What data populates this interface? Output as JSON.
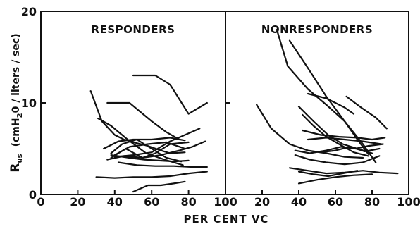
{
  "chart_data": {
    "type": "line",
    "xlabel": "PER CENT VC",
    "ylabel": {
      "main": "R",
      "sub": "us",
      "units": "(cmH",
      "units_sub": "2",
      "units_rest": "0 / liters / sec)"
    },
    "yticks": [
      "0",
      "10",
      "20"
    ],
    "ylim": [
      0,
      20
    ],
    "grid": false,
    "panels": [
      {
        "title": "RESPONDERS",
        "xlim": [
          0,
          100
        ],
        "xticks": [
          "0",
          "20",
          "40",
          "60",
          "80",
          "100"
        ],
        "series": [
          {
            "x": [
              50,
              62,
              70,
              80,
              90
            ],
            "y": [
              13.0,
              13.0,
              12.0,
              8.8,
              10.0
            ]
          },
          {
            "x": [
              36,
              48,
              60,
              68,
              75
            ],
            "y": [
              10.0,
              10.0,
              8.0,
              6.8,
              6.0
            ]
          },
          {
            "x": [
              27,
              33,
              40,
              45,
              52,
              58,
              65,
              70,
              78
            ],
            "y": [
              11.3,
              8.0,
              6.5,
              6.0,
              5.6,
              5.3,
              4.8,
              4.5,
              4.6
            ]
          },
          {
            "x": [
              31,
              38,
              47,
              57,
              67,
              77
            ],
            "y": [
              8.3,
              7.5,
              6.0,
              4.5,
              3.8,
              3.2
            ]
          },
          {
            "x": [
              34,
              42,
              50,
              60,
              70,
              78
            ],
            "y": [
              5.0,
              5.8,
              6.0,
              6.0,
              6.2,
              5.9
            ]
          },
          {
            "x": [
              38,
              44,
              52,
              60,
              68,
              76
            ],
            "y": [
              4.5,
              5.5,
              6.0,
              5.0,
              4.0,
              3.6
            ]
          },
          {
            "x": [
              40,
              48,
              58,
              68,
              78
            ],
            "y": [
              4.3,
              5.2,
              5.5,
              5.7,
              5.0
            ]
          },
          {
            "x": [
              38,
              46,
              55,
              62,
              70,
              80
            ],
            "y": [
              4.0,
              5.0,
              4.0,
              4.5,
              5.5,
              5.7
            ]
          },
          {
            "x": [
              40,
              50,
              60,
              70,
              78,
              86
            ],
            "y": [
              4.1,
              4.3,
              4.6,
              5.8,
              6.5,
              7.2
            ]
          },
          {
            "x": [
              36,
              45,
              55,
              65,
              75,
              82,
              89
            ],
            "y": [
              3.8,
              4.2,
              4.0,
              4.3,
              4.8,
              5.2,
              5.8
            ]
          },
          {
            "x": [
              38,
              48,
              56,
              64,
              72,
              80
            ],
            "y": [
              4.3,
              4.0,
              3.8,
              3.7,
              3.6,
              3.7
            ]
          },
          {
            "x": [
              42,
              52,
              62,
              72,
              82,
              90
            ],
            "y": [
              3.5,
              3.2,
              3.1,
              3.1,
              3.0,
              3.0
            ]
          },
          {
            "x": [
              30,
              40,
              50,
              60,
              70,
              80,
              90
            ],
            "y": [
              1.9,
              1.8,
              1.9,
              1.9,
              2.0,
              2.3,
              2.5
            ]
          },
          {
            "x": [
              50,
              58,
              65,
              72,
              78
            ],
            "y": [
              0.3,
              1.0,
              1.0,
              1.2,
              1.4
            ]
          }
        ]
      },
      {
        "title": "NONRESPONDERS",
        "xlim": [
          0,
          100
        ],
        "xticks": [
          "0",
          "20",
          "40",
          "60",
          "80",
          "100"
        ],
        "series": [
          {
            "x": [
              28,
              34,
              45,
              55,
              65,
              72,
              78
            ],
            "y": [
              18.0,
              14.0,
              11.5,
              9.8,
              8.0,
              6.0,
              4.4
            ]
          },
          {
            "x": [
              35,
              45,
              55,
              65,
              75,
              82
            ],
            "y": [
              16.8,
              13.8,
              10.7,
              8.0,
              5.5,
              3.5
            ]
          },
          {
            "x": [
              45,
              55,
              65,
              70
            ],
            "y": [
              11.0,
              10.5,
              9.5,
              8.8
            ]
          },
          {
            "x": [
              66,
              74,
              82,
              88
            ],
            "y": [
              10.7,
              9.5,
              8.4,
              7.2
            ]
          },
          {
            "x": [
              17,
              25,
              35,
              45,
              55,
              65,
              75
            ],
            "y": [
              9.8,
              7.2,
              5.5,
              4.8,
              4.5,
              4.1,
              4.0
            ]
          },
          {
            "x": [
              40,
              48,
              56,
              64,
              72,
              80
            ],
            "y": [
              9.6,
              8.0,
              6.5,
              5.5,
              5.0,
              4.5
            ]
          },
          {
            "x": [
              42,
              48,
              55,
              62,
              70,
              78
            ],
            "y": [
              8.7,
              7.5,
              6.3,
              5.5,
              4.6,
              4.2
            ]
          },
          {
            "x": [
              42,
              52,
              62,
              72,
              80,
              87
            ],
            "y": [
              7.0,
              6.5,
              6.3,
              6.2,
              6.0,
              6.2
            ]
          },
          {
            "x": [
              45,
              55,
              65,
              75,
              85
            ],
            "y": [
              6.0,
              6.2,
              6.0,
              5.8,
              5.5
            ]
          },
          {
            "x": [
              38,
              46,
              55,
              63,
              71,
              78,
              86
            ],
            "y": [
              4.8,
              4.5,
              4.8,
              5.2,
              5.0,
              5.3,
              5.5
            ]
          },
          {
            "x": [
              52,
              60,
              68,
              76,
              84
            ],
            "y": [
              4.6,
              4.8,
              5.2,
              4.7,
              5.0
            ]
          },
          {
            "x": [
              38,
              46,
              55,
              65,
              75,
              84
            ],
            "y": [
              4.3,
              3.8,
              3.5,
              3.3,
              3.5,
              4.2
            ]
          },
          {
            "x": [
              35,
              45,
              55,
              65,
              75,
              84,
              94
            ],
            "y": [
              2.9,
              2.6,
              2.3,
              2.4,
              2.6,
              2.4,
              2.3
            ]
          },
          {
            "x": [
              40,
              50,
              60,
              70,
              80
            ],
            "y": [
              1.2,
              1.6,
              1.9,
              2.1,
              2.2
            ]
          },
          {
            "x": [
              40,
              48,
              56,
              64,
              72
            ],
            "y": [
              2.5,
              2.2,
              2.0,
              2.3,
              2.6
            ]
          }
        ]
      }
    ]
  }
}
